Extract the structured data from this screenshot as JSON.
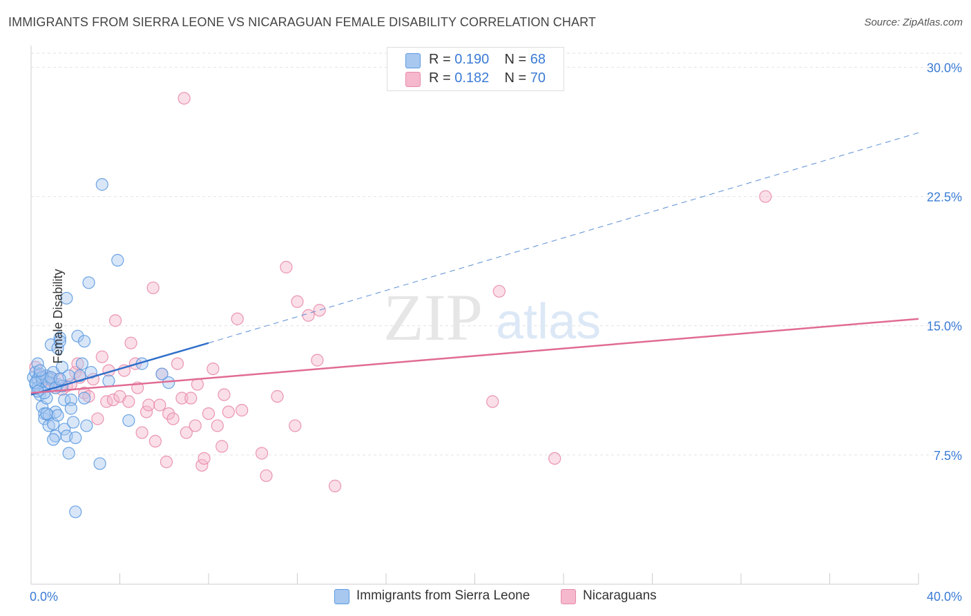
{
  "title": "IMMIGRANTS FROM SIERRA LEONE VS NICARAGUAN FEMALE DISABILITY CORRELATION CHART",
  "source": "Source: ZipAtlas.com",
  "watermark": {
    "zip": "ZIP",
    "atlas": "atlas"
  },
  "legend": {
    "rows": [
      {
        "r_label": "R = ",
        "r_value": "0.190",
        "n_label": "N = ",
        "n_value": "68",
        "color": "#a8c8f0"
      },
      {
        "r_label": "R = ",
        "r_value": "0.182",
        "n_label": "N = ",
        "n_value": "70",
        "color": "#f5b8cc"
      }
    ]
  },
  "bottom_legend": [
    {
      "label": "Immigrants from Sierra Leone",
      "color": "#a8c8f0"
    },
    {
      "label": "Nicaraguans",
      "color": "#f5b8cc"
    }
  ],
  "chart_data": {
    "type": "scatter",
    "title": "IMMIGRANTS FROM SIERRA LEONE VS NICARAGUAN FEMALE DISABILITY CORRELATION CHART",
    "xlabel": "",
    "ylabel": "Female Disability",
    "xlim": [
      0,
      40
    ],
    "ylim": [
      0,
      31.5
    ],
    "x_tick_labels": [
      "0.0%",
      "40.0%"
    ],
    "y_ticks": [
      7.5,
      15.0,
      22.5,
      30.0
    ],
    "y_tick_labels": [
      "7.5%",
      "15.0%",
      "22.5%",
      "30.0%"
    ],
    "grid": "horizontal dashed",
    "legend_position": "top-center",
    "series": [
      {
        "name": "Immigrants from Sierra Leone",
        "color": "#5b9ae0",
        "fill": "#a8c8f0",
        "trend": {
          "x0": 0,
          "y0": 11.0,
          "x1": 8.0,
          "y1": 14.0,
          "dashed_to_x": 40,
          "dashed_to_y": 26.2,
          "color": "#2f6fc9"
        },
        "points": [
          [
            0.1,
            12.0
          ],
          [
            0.2,
            11.6
          ],
          [
            0.2,
            12.3
          ],
          [
            0.3,
            11.9
          ],
          [
            0.3,
            11.4
          ],
          [
            0.4,
            12.2
          ],
          [
            0.4,
            11.0
          ],
          [
            0.5,
            11.8
          ],
          [
            0.5,
            10.3
          ],
          [
            0.6,
            9.9
          ],
          [
            0.6,
            9.6
          ],
          [
            0.7,
            12.1
          ],
          [
            0.7,
            10.8
          ],
          [
            0.8,
            9.8
          ],
          [
            0.8,
            9.2
          ],
          [
            0.9,
            13.9
          ],
          [
            0.9,
            11.9
          ],
          [
            1.0,
            12.3
          ],
          [
            1.0,
            9.3
          ],
          [
            1.1,
            10.0
          ],
          [
            1.1,
            8.6
          ],
          [
            1.2,
            13.7
          ],
          [
            1.2,
            11.6
          ],
          [
            1.3,
            14.3
          ],
          [
            1.3,
            14.1
          ],
          [
            1.4,
            11.5
          ],
          [
            1.4,
            12.6
          ],
          [
            1.5,
            9.0
          ],
          [
            1.5,
            10.7
          ],
          [
            1.6,
            8.6
          ],
          [
            1.6,
            16.6
          ],
          [
            1.7,
            7.6
          ],
          [
            1.7,
            12.1
          ],
          [
            1.8,
            10.7
          ],
          [
            1.8,
            10.2
          ],
          [
            2.0,
            8.5
          ],
          [
            2.0,
            4.2
          ],
          [
            2.1,
            14.4
          ],
          [
            2.2,
            12.1
          ],
          [
            2.3,
            12.8
          ],
          [
            2.4,
            14.1
          ],
          [
            2.4,
            10.8
          ],
          [
            2.5,
            9.2
          ],
          [
            2.6,
            17.5
          ],
          [
            2.7,
            12.3
          ],
          [
            3.1,
            7.0
          ],
          [
            3.2,
            23.2
          ],
          [
            3.5,
            11.8
          ],
          [
            3.9,
            18.8
          ],
          [
            4.4,
            9.5
          ],
          [
            5.0,
            12.8
          ],
          [
            5.9,
            12.2
          ],
          [
            6.2,
            11.7
          ],
          [
            0.3,
            12.8
          ],
          [
            0.4,
            11.3
          ],
          [
            0.5,
            12.0
          ],
          [
            0.6,
            11.1
          ],
          [
            0.8,
            11.7
          ],
          [
            0.9,
            12.0
          ],
          [
            1.1,
            11.4
          ],
          [
            1.2,
            9.8
          ],
          [
            1.0,
            8.4
          ],
          [
            0.7,
            9.9
          ],
          [
            1.3,
            11.9
          ],
          [
            0.2,
            11.7
          ],
          [
            0.3,
            11.2
          ],
          [
            0.4,
            12.4
          ],
          [
            1.9,
            9.4
          ]
        ]
      },
      {
        "name": "Nicaraguans",
        "color": "#e88aa8",
        "fill": "#f5b8cc",
        "trend": {
          "x0": 0,
          "y0": 11.1,
          "x1": 40,
          "y1": 15.4,
          "color": "#e06b94"
        },
        "points": [
          [
            0.2,
            12.6
          ],
          [
            0.4,
            12.1
          ],
          [
            0.6,
            11.8
          ],
          [
            0.8,
            12.0
          ],
          [
            1.0,
            11.7
          ],
          [
            1.2,
            11.9
          ],
          [
            1.4,
            11.3
          ],
          [
            1.6,
            11.5
          ],
          [
            1.8,
            11.6
          ],
          [
            2.0,
            12.3
          ],
          [
            2.2,
            12.0
          ],
          [
            2.4,
            11.1
          ],
          [
            2.6,
            10.9
          ],
          [
            2.8,
            11.9
          ],
          [
            3.0,
            9.6
          ],
          [
            3.2,
            13.2
          ],
          [
            3.4,
            10.6
          ],
          [
            3.5,
            12.4
          ],
          [
            3.7,
            10.7
          ],
          [
            3.8,
            15.3
          ],
          [
            4.0,
            10.9
          ],
          [
            4.2,
            12.4
          ],
          [
            4.4,
            10.6
          ],
          [
            4.5,
            14.0
          ],
          [
            4.7,
            12.8
          ],
          [
            4.8,
            11.4
          ],
          [
            5.0,
            8.8
          ],
          [
            5.2,
            10.0
          ],
          [
            5.3,
            10.4
          ],
          [
            5.5,
            17.2
          ],
          [
            5.6,
            8.3
          ],
          [
            5.8,
            10.4
          ],
          [
            5.9,
            12.2
          ],
          [
            6.1,
            7.1
          ],
          [
            6.2,
            9.9
          ],
          [
            6.4,
            9.6
          ],
          [
            6.6,
            12.8
          ],
          [
            6.8,
            10.8
          ],
          [
            6.9,
            28.2
          ],
          [
            7.0,
            8.8
          ],
          [
            7.2,
            10.8
          ],
          [
            7.4,
            9.2
          ],
          [
            7.5,
            11.6
          ],
          [
            7.7,
            6.9
          ],
          [
            7.8,
            7.3
          ],
          [
            8.0,
            9.9
          ],
          [
            8.2,
            12.5
          ],
          [
            8.4,
            9.2
          ],
          [
            8.6,
            8.0
          ],
          [
            8.7,
            11.0
          ],
          [
            8.9,
            10.0
          ],
          [
            9.3,
            15.4
          ],
          [
            9.5,
            10.1
          ],
          [
            10.4,
            7.6
          ],
          [
            10.6,
            6.3
          ],
          [
            11.1,
            10.9
          ],
          [
            11.5,
            18.4
          ],
          [
            11.9,
            9.2
          ],
          [
            12.0,
            16.4
          ],
          [
            12.5,
            15.6
          ],
          [
            12.9,
            13.0
          ],
          [
            13.0,
            15.9
          ],
          [
            13.7,
            5.7
          ],
          [
            20.8,
            10.6
          ],
          [
            21.1,
            17.0
          ],
          [
            23.6,
            7.3
          ],
          [
            33.1,
            22.5
          ],
          [
            2.1,
            12.8
          ],
          [
            1.1,
            11.4
          ],
          [
            0.5,
            11.9
          ]
        ]
      }
    ]
  }
}
